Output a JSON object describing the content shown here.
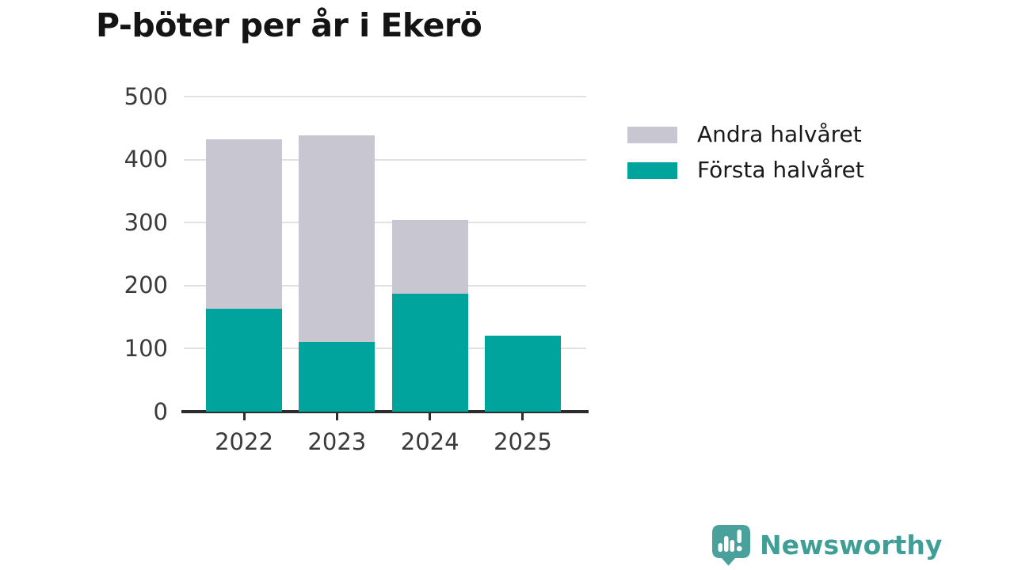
{
  "title": "P-böter per år i Ekerö",
  "chart_data": {
    "type": "bar",
    "stacked": true,
    "title": "P-böter per år i Ekerö",
    "categories": [
      "2022",
      "2023",
      "2024",
      "2025"
    ],
    "series": [
      {
        "name": "Första halvåret",
        "color": "#00a49c",
        "values": [
          163,
          111,
          187,
          120
        ]
      },
      {
        "name": "Andra halvåret",
        "color": "#c8c6d0",
        "values": [
          269,
          327,
          117,
          0
        ]
      }
    ],
    "totals": [
      432,
      438,
      304,
      120
    ],
    "xlabel": "",
    "ylabel": "",
    "ylim": [
      0,
      500
    ],
    "yticks": [
      0,
      100,
      200,
      300,
      400,
      500
    ],
    "grid": "horizontal",
    "legend_position": "right"
  },
  "legend": {
    "items": [
      {
        "label": "Andra halvåret",
        "color": "#c8c6d0"
      },
      {
        "label": "Första halvåret",
        "color": "#00a49c"
      }
    ]
  },
  "branding": {
    "name": "Newsworthy",
    "text_color": "#3f9f97",
    "badge_color": "#4aa09b"
  },
  "colors": {
    "first_half": "#00a49c",
    "second_half": "#c8c6d0",
    "gridline": "#e1e1e1",
    "axis": "#2d2d2d",
    "text": "#3a3a3a"
  }
}
